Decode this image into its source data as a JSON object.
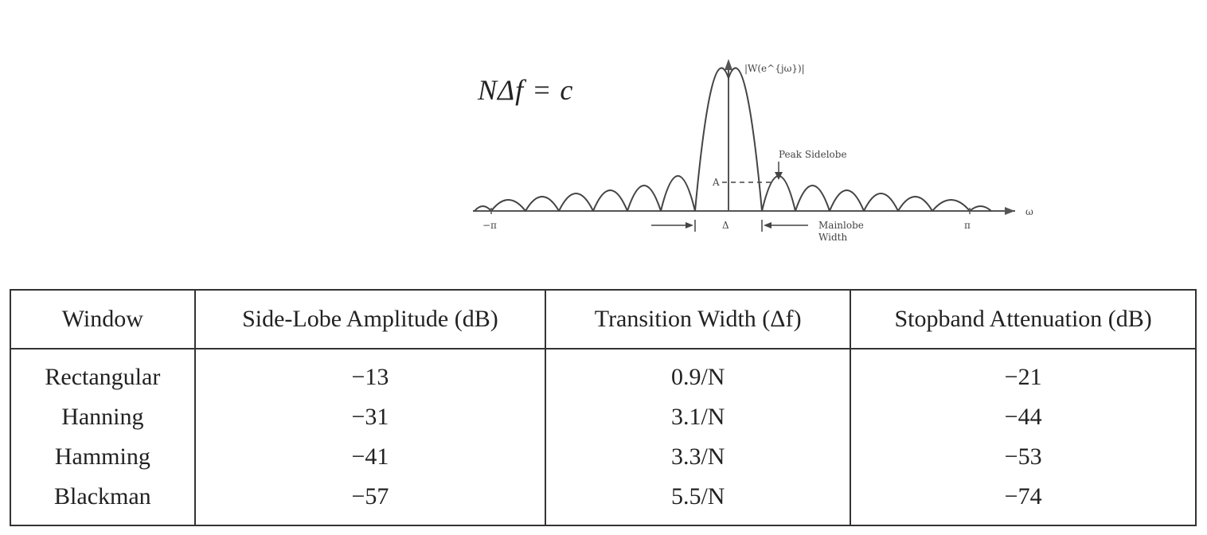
{
  "formula": "NΔf = c",
  "diagram": {
    "y_axis_label": "|W(e^{jω})|",
    "x_axis_label": "ω",
    "left_limit": "−π",
    "right_limit": "π",
    "peak_sidelobe_label": "Peak Sidelobe",
    "amplitude_marker": "A",
    "delta_label": "Δ",
    "mainlobe_label_line1": "Mainlobe",
    "mainlobe_label_line2": "Width"
  },
  "table": {
    "headers": [
      "Window",
      "Side-Lobe Amplitude (dB)",
      "Transition Width (Δf)",
      "Stopband Attenuation (dB)"
    ],
    "rows": [
      [
        "Rectangular",
        "−13",
        "0.9/N",
        "−21"
      ],
      [
        "Hanning",
        "−31",
        "3.1/N",
        "−44"
      ],
      [
        "Hamming",
        "−41",
        "3.3/N",
        "−53"
      ],
      [
        "Blackman",
        "−57",
        "5.5/N",
        "−74"
      ]
    ]
  }
}
